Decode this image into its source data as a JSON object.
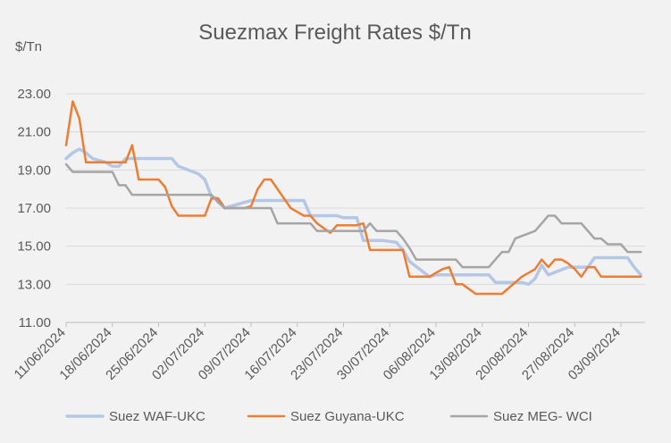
{
  "chart_data": {
    "type": "line",
    "title": "Suezmax Freight Rates $/Tn",
    "unit_label": "$/Tn",
    "xlabel": "",
    "ylabel": "",
    "ylim": [
      11.0,
      23.0
    ],
    "yticks": [
      "11.00",
      "13.00",
      "15.00",
      "17.00",
      "19.00",
      "21.00",
      "23.00"
    ],
    "x_range": [
      "2024-06-11",
      "2024-09-06"
    ],
    "x_ticks": [
      {
        "date": "2024-06-11",
        "label": "11/06/2024"
      },
      {
        "date": "2024-06-18",
        "label": "18/06/2024"
      },
      {
        "date": "2024-06-25",
        "label": "25/06/2024"
      },
      {
        "date": "2024-07-02",
        "label": "02/07/2024"
      },
      {
        "date": "2024-07-09",
        "label": "09/07/2024"
      },
      {
        "date": "2024-07-16",
        "label": "16/07/2024"
      },
      {
        "date": "2024-07-23",
        "label": "23/07/2024"
      },
      {
        "date": "2024-07-30",
        "label": "30/07/2024"
      },
      {
        "date": "2024-08-06",
        "label": "06/08/2024"
      },
      {
        "date": "2024-08-13",
        "label": "13/08/2024"
      },
      {
        "date": "2024-08-20",
        "label": "20/08/2024"
      },
      {
        "date": "2024-08-27",
        "label": "27/08/2024"
      },
      {
        "date": "2024-09-03",
        "label": "03/09/2024"
      }
    ],
    "grid": true,
    "legend": "bottom",
    "series": [
      {
        "name": "Suez WAF-UKC",
        "color": "#b4c7e7",
        "points": [
          [
            "2024-06-11",
            19.6
          ],
          [
            "2024-06-12",
            19.9
          ],
          [
            "2024-06-13",
            20.1
          ],
          [
            "2024-06-14",
            19.9
          ],
          [
            "2024-06-15",
            19.6
          ],
          [
            "2024-06-17",
            19.4
          ],
          [
            "2024-06-18",
            19.2
          ],
          [
            "2024-06-19",
            19.2
          ],
          [
            "2024-06-20",
            19.6
          ],
          [
            "2024-06-27",
            19.6
          ],
          [
            "2024-06-28",
            19.2
          ],
          [
            "2024-07-01",
            18.8
          ],
          [
            "2024-07-02",
            18.5
          ],
          [
            "2024-07-03",
            17.6
          ],
          [
            "2024-07-04",
            17.5
          ],
          [
            "2024-07-05",
            17.0
          ],
          [
            "2024-07-08",
            17.3
          ],
          [
            "2024-07-09",
            17.4
          ],
          [
            "2024-07-17",
            17.4
          ],
          [
            "2024-07-18",
            16.6
          ],
          [
            "2024-07-22",
            16.6
          ],
          [
            "2024-07-23",
            16.5
          ],
          [
            "2024-07-25",
            16.5
          ],
          [
            "2024-07-26",
            15.3
          ],
          [
            "2024-07-29",
            15.3
          ],
          [
            "2024-07-31",
            15.2
          ],
          [
            "2024-08-01",
            14.8
          ],
          [
            "2024-08-02",
            14.2
          ],
          [
            "2024-08-05",
            13.4
          ],
          [
            "2024-08-06",
            13.5
          ],
          [
            "2024-08-14",
            13.5
          ],
          [
            "2024-08-15",
            13.1
          ],
          [
            "2024-08-19",
            13.1
          ],
          [
            "2024-08-20",
            13.0
          ],
          [
            "2024-08-21",
            13.3
          ],
          [
            "2024-08-22",
            14.0
          ],
          [
            "2024-08-23",
            13.5
          ],
          [
            "2024-08-26",
            13.9
          ],
          [
            "2024-08-29",
            13.9
          ],
          [
            "2024-08-30",
            14.4
          ],
          [
            "2024-09-04",
            14.4
          ],
          [
            "2024-09-05",
            13.9
          ],
          [
            "2024-09-06",
            13.5
          ]
        ]
      },
      {
        "name": "Suez Guyana-UKC",
        "color": "#ed7d31",
        "points": [
          [
            "2024-06-11",
            20.3
          ],
          [
            "2024-06-12",
            22.6
          ],
          [
            "2024-06-13",
            21.7
          ],
          [
            "2024-06-14",
            19.4
          ],
          [
            "2024-06-20",
            19.4
          ],
          [
            "2024-06-21",
            20.3
          ],
          [
            "2024-06-22",
            18.5
          ],
          [
            "2024-06-25",
            18.5
          ],
          [
            "2024-06-26",
            18.1
          ],
          [
            "2024-06-27",
            17.1
          ],
          [
            "2024-06-28",
            16.6
          ],
          [
            "2024-07-01",
            16.6
          ],
          [
            "2024-07-02",
            16.6
          ],
          [
            "2024-07-03",
            17.5
          ],
          [
            "2024-07-04",
            17.5
          ],
          [
            "2024-07-05",
            17.0
          ],
          [
            "2024-07-08",
            17.0
          ],
          [
            "2024-07-09",
            17.1
          ],
          [
            "2024-07-10",
            18.0
          ],
          [
            "2024-07-11",
            18.5
          ],
          [
            "2024-07-12",
            18.5
          ],
          [
            "2024-07-15",
            17.0
          ],
          [
            "2024-07-16",
            16.8
          ],
          [
            "2024-07-17",
            16.6
          ],
          [
            "2024-07-18",
            16.6
          ],
          [
            "2024-07-19",
            16.2
          ],
          [
            "2024-07-21",
            15.7
          ],
          [
            "2024-07-22",
            16.1
          ],
          [
            "2024-07-25",
            16.1
          ],
          [
            "2024-07-26",
            16.2
          ],
          [
            "2024-07-27",
            14.8
          ],
          [
            "2024-07-31",
            14.8
          ],
          [
            "2024-08-01",
            14.8
          ],
          [
            "2024-08-02",
            13.4
          ],
          [
            "2024-08-05",
            13.4
          ],
          [
            "2024-08-06",
            13.6
          ],
          [
            "2024-08-07",
            13.8
          ],
          [
            "2024-08-08",
            13.9
          ],
          [
            "2024-08-09",
            13.0
          ],
          [
            "2024-08-10",
            13.0
          ],
          [
            "2024-08-12",
            12.5
          ],
          [
            "2024-08-15",
            12.5
          ],
          [
            "2024-08-16",
            12.5
          ],
          [
            "2024-08-19",
            13.4
          ],
          [
            "2024-08-21",
            13.8
          ],
          [
            "2024-08-22",
            14.3
          ],
          [
            "2024-08-23",
            13.9
          ],
          [
            "2024-08-24",
            14.3
          ],
          [
            "2024-08-25",
            14.3
          ],
          [
            "2024-08-26",
            14.1
          ],
          [
            "2024-08-27",
            13.8
          ],
          [
            "2024-08-28",
            13.4
          ],
          [
            "2024-08-29",
            13.9
          ],
          [
            "2024-08-30",
            13.9
          ],
          [
            "2024-08-31",
            13.4
          ],
          [
            "2024-09-06",
            13.4
          ]
        ]
      },
      {
        "name": "Suez MEG- WCI",
        "color": "#a5a5a5",
        "points": [
          [
            "2024-06-11",
            19.3
          ],
          [
            "2024-06-12",
            18.9
          ],
          [
            "2024-06-18",
            18.9
          ],
          [
            "2024-06-19",
            18.2
          ],
          [
            "2024-06-20",
            18.2
          ],
          [
            "2024-06-21",
            17.7
          ],
          [
            "2024-07-03",
            17.7
          ],
          [
            "2024-07-04",
            17.3
          ],
          [
            "2024-07-05",
            17.0
          ],
          [
            "2024-07-12",
            17.0
          ],
          [
            "2024-07-13",
            16.2
          ],
          [
            "2024-07-18",
            16.2
          ],
          [
            "2024-07-19",
            15.8
          ],
          [
            "2024-07-26",
            15.8
          ],
          [
            "2024-07-27",
            16.2
          ],
          [
            "2024-07-28",
            15.8
          ],
          [
            "2024-07-31",
            15.8
          ],
          [
            "2024-08-01",
            15.4
          ],
          [
            "2024-08-02",
            14.9
          ],
          [
            "2024-08-03",
            14.3
          ],
          [
            "2024-08-09",
            14.3
          ],
          [
            "2024-08-10",
            13.9
          ],
          [
            "2024-08-14",
            13.9
          ],
          [
            "2024-08-15",
            14.3
          ],
          [
            "2024-08-16",
            14.7
          ],
          [
            "2024-08-17",
            14.7
          ],
          [
            "2024-08-18",
            15.4
          ],
          [
            "2024-08-21",
            15.8
          ],
          [
            "2024-08-22",
            16.2
          ],
          [
            "2024-08-23",
            16.6
          ],
          [
            "2024-08-24",
            16.6
          ],
          [
            "2024-08-25",
            16.2
          ],
          [
            "2024-08-28",
            16.2
          ],
          [
            "2024-08-29",
            15.8
          ],
          [
            "2024-08-30",
            15.4
          ],
          [
            "2024-08-31",
            15.4
          ],
          [
            "2024-09-01",
            15.1
          ],
          [
            "2024-09-03",
            15.1
          ],
          [
            "2024-09-04",
            14.7
          ],
          [
            "2024-09-06",
            14.7
          ]
        ]
      }
    ]
  }
}
